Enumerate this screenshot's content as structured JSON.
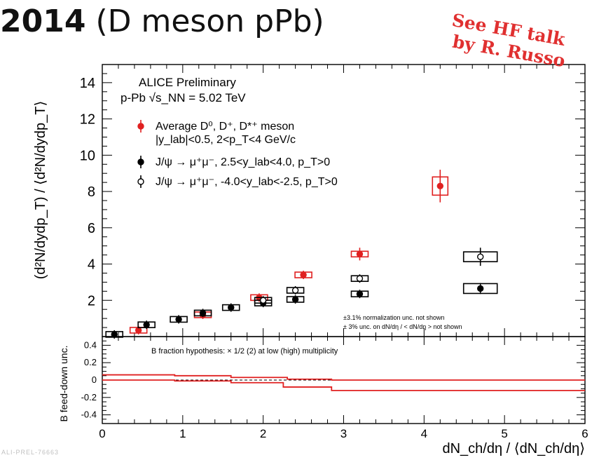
{
  "slide": {
    "title_bold": "2014",
    "title_rest": " (D meson pPb)",
    "stamp_line1": "See HF talk",
    "stamp_line2": "by R. Russo",
    "footer_id": "ALI-PREL-76663"
  },
  "chart_data": [
    {
      "type": "scatter",
      "ylabel": "(d²N/dydp_T) / ⟨d²N/dydp_T⟩",
      "xlabel": "dN_ch/dη / ⟨dN_ch/dη⟩",
      "xlim": [
        0,
        6
      ],
      "ylim": [
        0,
        15
      ],
      "yticks": [
        2,
        4,
        6,
        8,
        10,
        12,
        14
      ],
      "xticks": [
        0,
        1,
        2,
        3,
        4,
        5,
        6
      ],
      "annotations": [
        "ALICE Preliminary",
        "p-Pb √s_NN = 5.02 TeV"
      ],
      "notes": [
        "±3.1% normalization unc. not shown",
        "± 3% unc. on dN/dη / < dN/dη > not shown"
      ],
      "legend_placement": "top-left",
      "series": [
        {
          "name": "Average D⁰, D⁺, D*⁺ meson",
          "name_line2": "|y_lab|<0.5, 2<p_T<4 GeV/c",
          "color": "#e02020",
          "marker": "filled-circle",
          "points": [
            {
              "x": 0.45,
              "y": 0.35,
              "err": 0.1
            },
            {
              "x": 1.25,
              "y": 1.2,
              "err": 0.1
            },
            {
              "x": 1.95,
              "y": 2.15,
              "err": 0.12
            },
            {
              "x": 2.5,
              "y": 3.4,
              "err": 0.2
            },
            {
              "x": 3.2,
              "y": 4.55,
              "err": 0.35
            },
            {
              "x": 4.2,
              "y": 8.3,
              "err": 0.9
            }
          ]
        },
        {
          "name": "J/ψ → μ⁺μ⁻, 2.5<y_lab<4.0, p_T>0",
          "color": "#000000",
          "marker": "filled-circle",
          "points": [
            {
              "x": 0.15,
              "y": 0.12,
              "err": 0.05
            },
            {
              "x": 0.55,
              "y": 0.65,
              "err": 0.06
            },
            {
              "x": 0.95,
              "y": 0.95,
              "err": 0.06
            },
            {
              "x": 1.25,
              "y": 1.3,
              "err": 0.08
            },
            {
              "x": 1.6,
              "y": 1.6,
              "err": 0.08
            },
            {
              "x": 2.0,
              "y": 1.85,
              "err": 0.1
            },
            {
              "x": 2.4,
              "y": 2.05,
              "err": 0.1
            },
            {
              "x": 3.2,
              "y": 2.35,
              "err": 0.12
            },
            {
              "x": 4.7,
              "y": 2.65,
              "err": 0.3
            }
          ]
        },
        {
          "name": "J/ψ → μ⁺μ⁻, -4.0<y_lab<-2.5, p_T>0",
          "color": "#000000",
          "marker": "open-circle",
          "points": [
            {
              "x": 2.0,
              "y": 2.0,
              "err": 0.1
            },
            {
              "x": 2.4,
              "y": 2.55,
              "err": 0.1
            },
            {
              "x": 3.2,
              "y": 3.2,
              "err": 0.15
            },
            {
              "x": 4.7,
              "y": 4.4,
              "err": 0.5
            }
          ]
        }
      ]
    },
    {
      "type": "line",
      "ylabel": "B feed-down unc.",
      "xlim": [
        0,
        6
      ],
      "ylim": [
        -0.5,
        0.5
      ],
      "yticks": [
        -0.4,
        -0.2,
        0,
        0.2,
        0.4
      ],
      "annotations": [
        "B fraction hypothesis: × 1/2 (2) at low (high) multiplicity"
      ],
      "reference_line": {
        "y": 0,
        "style": "dashed"
      },
      "series": [
        {
          "name": "upper band",
          "color": "#e02020",
          "steps": [
            {
              "x0": 0,
              "x1": 0.9,
              "y": 0.06
            },
            {
              "x0": 0.9,
              "x1": 1.6,
              "y": 0.05
            },
            {
              "x0": 1.6,
              "x1": 2.3,
              "y": 0.03
            },
            {
              "x0": 2.3,
              "x1": 2.85,
              "y": 0.01
            },
            {
              "x0": 2.85,
              "x1": 6,
              "y": 0.0
            }
          ]
        },
        {
          "name": "lower band",
          "color": "#e02020",
          "steps": [
            {
              "x0": 0,
              "x1": 0.9,
              "y": 0.0
            },
            {
              "x0": 0.9,
              "x1": 1.6,
              "y": -0.01
            },
            {
              "x0": 1.6,
              "x1": 2.25,
              "y": -0.03
            },
            {
              "x0": 2.25,
              "x1": 2.85,
              "y": -0.08
            },
            {
              "x0": 2.85,
              "x1": 6,
              "y": -0.12
            }
          ]
        }
      ]
    }
  ]
}
